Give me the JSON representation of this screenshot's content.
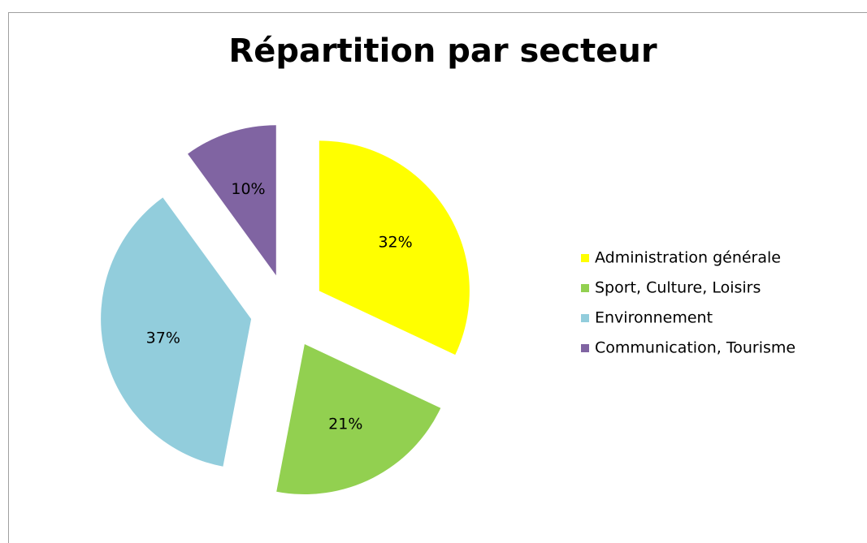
{
  "chart_data": {
    "type": "pie",
    "title": "Répartition par secteur",
    "categories": [
      "Administration générale",
      "Sport, Culture, Loisirs",
      "Environnement",
      "Communication, Tourisme"
    ],
    "values": [
      32,
      21,
      37,
      10
    ],
    "value_labels": [
      "32%",
      "21%",
      "37%",
      "10%"
    ],
    "colors": [
      "#ffff00",
      "#92d050",
      "#92cddc",
      "#8064a2"
    ],
    "legend": "right"
  }
}
